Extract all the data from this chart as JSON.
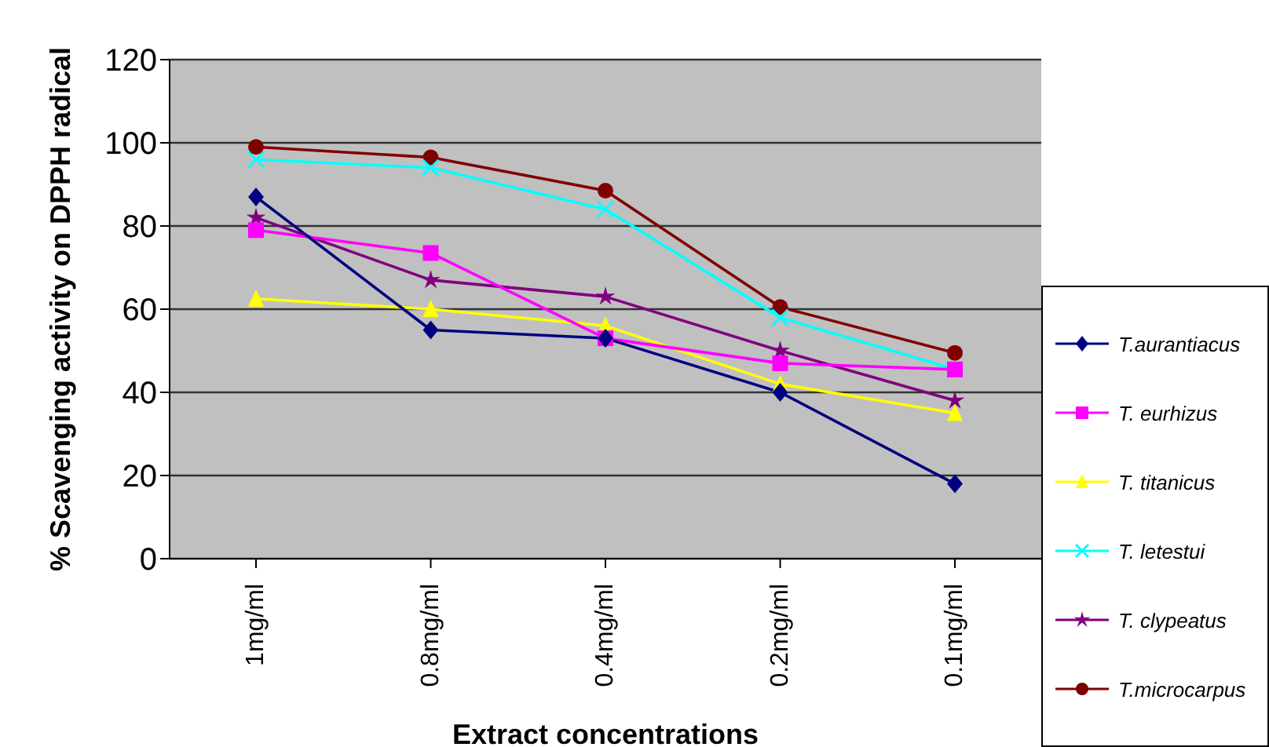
{
  "chart_data": {
    "type": "line",
    "xlabel": "Extract concentrations",
    "ylabel": "% Scavenging activity on  DPPH radical",
    "categories": [
      "1mg/ml",
      "0.8mg/ml",
      "0.4mg/ml",
      "0.2mg/ml",
      "0.1mg/ml"
    ],
    "ylim": [
      0,
      120
    ],
    "yticks": [
      0,
      20,
      40,
      60,
      80,
      100,
      120
    ],
    "grid": "y",
    "legend": "bottom right",
    "series": [
      {
        "name": "T.aurantiacus",
        "color": "#000080",
        "marker": "diamond",
        "values": [
          87,
          55,
          53,
          40,
          18
        ]
      },
      {
        "name": "T. eurhizus",
        "color": "#ff00ff",
        "marker": "square",
        "values": [
          79,
          73.5,
          53,
          47,
          45.5
        ]
      },
      {
        "name": "T. titanicus",
        "color": "#ffff00",
        "marker": "triangle",
        "values": [
          62.5,
          60,
          56,
          42,
          35
        ]
      },
      {
        "name": "T. letestui",
        "color": "#00ffff",
        "marker": "cross",
        "values": [
          96,
          94,
          84,
          58,
          45.5
        ]
      },
      {
        "name": "T. clypeatus",
        "color": "#800080",
        "marker": "star",
        "values": [
          82,
          67,
          63,
          50,
          38
        ]
      },
      {
        "name": "T.microcarpus",
        "color": "#800000",
        "marker": "circle",
        "values": [
          99,
          96.5,
          88.5,
          60.5,
          49.5
        ]
      }
    ]
  }
}
